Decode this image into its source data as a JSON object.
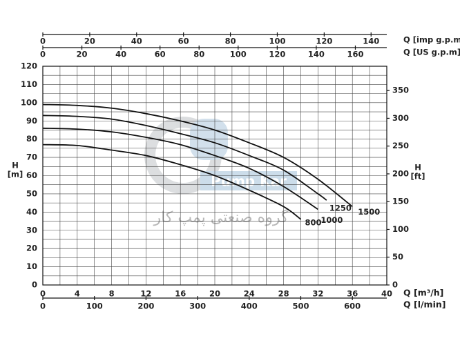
{
  "chart_data": {
    "type": "line",
    "ylabel": "H",
    "ylabel_unit": "[m]",
    "y2label": "H",
    "y2label_unit": "[ft]",
    "xlabel": "Q [m³/h]",
    "x_lmin_label": "Q [l/min]",
    "x_imp_label": "Q [imp g.p.m]",
    "x_us_label": "Q [US g.p.m]",
    "watermark": "گروه صنعتی پمپ کار",
    "logo_text": "Pump Kar",
    "xlim": [
      0,
      40
    ],
    "xticks": [
      0,
      4,
      8,
      12,
      16,
      20,
      24,
      28,
      32,
      36,
      40
    ],
    "x_minor_ticks": [
      2,
      6,
      10,
      14,
      18,
      22,
      26,
      30,
      34,
      38
    ],
    "ylim": [
      0,
      120
    ],
    "yticks": [
      0,
      10,
      20,
      30,
      40,
      50,
      60,
      70,
      80,
      90,
      100,
      110,
      120
    ],
    "y_minor_ticks": [
      5,
      15,
      25,
      35,
      45,
      55,
      65,
      75,
      85,
      95,
      105,
      115
    ],
    "y2lim": [
      0,
      393.7
    ],
    "y2ticks": [
      0,
      50,
      100,
      150,
      200,
      250,
      300,
      350
    ],
    "x_imp_lim": [
      0,
      146.7
    ],
    "x_imp_ticks": [
      0,
      20,
      40,
      60,
      80,
      100,
      120,
      140
    ],
    "x_us_lim": [
      0,
      176.1
    ],
    "x_us_ticks": [
      0,
      20,
      40,
      60,
      80,
      100,
      120,
      140,
      160
    ],
    "x_lmin_lim": [
      0,
      666.7
    ],
    "x_lmin_ticks": [
      0,
      100,
      200,
      300,
      400,
      500,
      600
    ],
    "grid": true,
    "series": [
      {
        "name": "1500",
        "color": "#111111",
        "x": [
          0,
          4,
          8,
          12,
          16,
          20,
          24,
          28,
          32,
          36
        ],
        "values": [
          99,
          98.5,
          97,
          94,
          90,
          85,
          78,
          70,
          58,
          43
        ]
      },
      {
        "name": "1250",
        "color": "#111111",
        "x": [
          0,
          4,
          8,
          12,
          16,
          20,
          24,
          28,
          32,
          33
        ],
        "values": [
          93,
          92.5,
          91,
          87.5,
          83,
          78,
          71,
          63,
          50,
          46.5
        ]
      },
      {
        "name": "1000",
        "color": "#111111",
        "x": [
          0,
          4,
          8,
          12,
          16,
          20,
          24,
          28,
          32
        ],
        "values": [
          86,
          85.5,
          84,
          81,
          77,
          71,
          64,
          54,
          41.5
        ]
      },
      {
        "name": "800",
        "color": "#111111",
        "x": [
          0,
          4,
          8,
          12,
          16,
          20,
          24,
          28,
          30
        ],
        "values": [
          77,
          76.5,
          74,
          71,
          66,
          60,
          52,
          43,
          36
        ]
      }
    ]
  }
}
